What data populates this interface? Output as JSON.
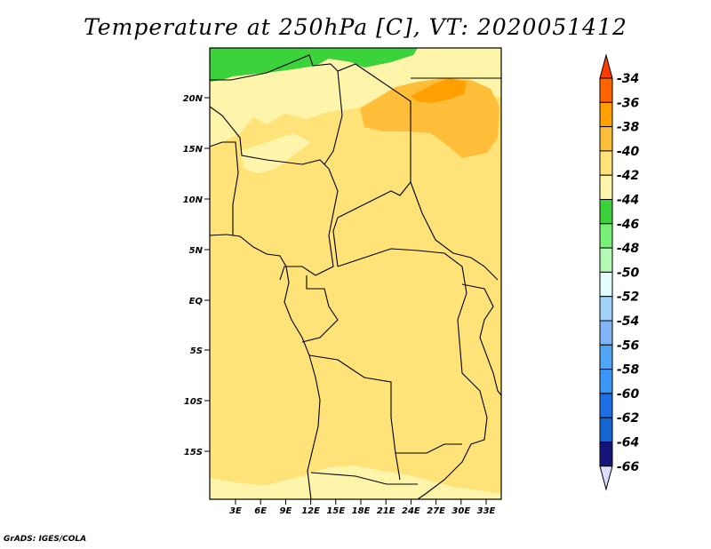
{
  "title": "Temperature at 250hPa [C], VT: 2020051412",
  "credit": "GrADS: IGES/COLA",
  "map": {
    "lat_labels": [
      "20N",
      "15N",
      "10N",
      "5N",
      "EQ",
      "5S",
      "10S",
      "15S"
    ],
    "lon_labels": [
      "3E",
      "6E",
      "9E",
      "12E",
      "15E",
      "18E",
      "21E",
      "24E",
      "27E",
      "30E",
      "33E"
    ]
  },
  "colorbar": {
    "labels": [
      "-34",
      "-36",
      "-38",
      "-40",
      "-42",
      "-44",
      "-46",
      "-48",
      "-50",
      "-52",
      "-54",
      "-56",
      "-58",
      "-60",
      "-62",
      "-64",
      "-66"
    ],
    "over_color": "#ff3c00",
    "under_color": "#dcdcff",
    "colors": [
      "#ff6400",
      "#ffa000",
      "#ffbe3a",
      "#ffe278",
      "#fff5aa",
      "#3cd23c",
      "#78f078",
      "#b4fab4",
      "#e1ffff",
      "#a0d2fa",
      "#82b4fa",
      "#50a5f5",
      "#3c96f5",
      "#1e6ee6",
      "#1464d2",
      "#14147a"
    ]
  }
}
